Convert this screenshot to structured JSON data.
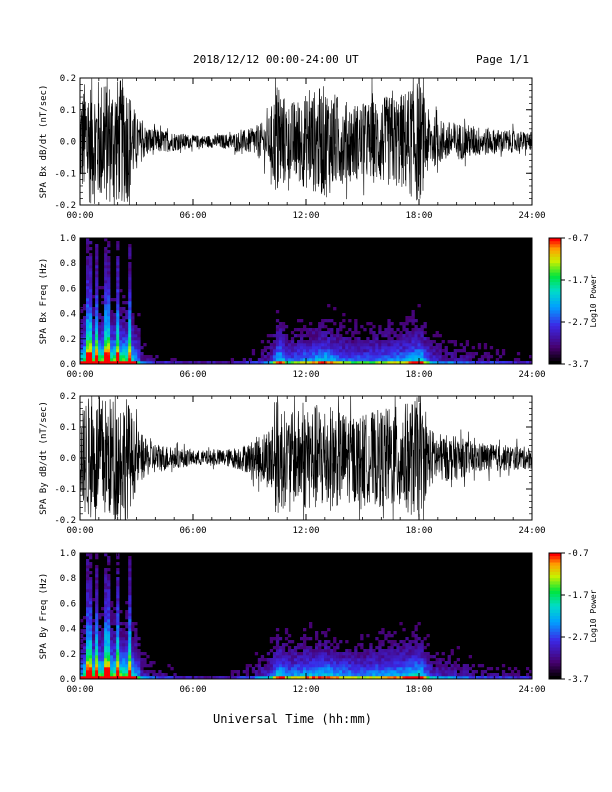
{
  "header": {
    "title": "2018/12/12   00:00-24:00 UT",
    "page_label": "Page 1/1"
  },
  "xaxis": {
    "label": "Universal Time (hh:mm)",
    "ticks": [
      "00:00",
      "06:00",
      "12:00",
      "18:00",
      "24:00"
    ]
  },
  "chart_data": [
    {
      "type": "line",
      "ylabel": "SPA Bx dB/dt (nT/sec)",
      "xlim": [
        0,
        24
      ],
      "ylim": [
        -0.2,
        0.2
      ],
      "yticks": [
        "0.2",
        "0.1",
        "0.0",
        "-0.1",
        "-0.2"
      ],
      "series": [
        {
          "values_envelope_hours": [
            0,
            0.3,
            1.0,
            1.5,
            2.0,
            2.5,
            3.0,
            3.5,
            4.0,
            5.0,
            6.0,
            7.0,
            8.0,
            9.0,
            10.0,
            10.5,
            11.0,
            12.0,
            13.0,
            14.0,
            15.0,
            16.0,
            17.0,
            18.0,
            18.5,
            19.0,
            20.0,
            21.0,
            22.0,
            23.0,
            24.0
          ],
          "amplitude_nT_per_sec": [
            0.15,
            0.2,
            0.2,
            0.2,
            0.2,
            0.2,
            0.08,
            0.05,
            0.04,
            0.03,
            0.02,
            0.02,
            0.025,
            0.04,
            0.07,
            0.2,
            0.12,
            0.15,
            0.18,
            0.13,
            0.12,
            0.14,
            0.15,
            0.2,
            0.1,
            0.07,
            0.06,
            0.05,
            0.04,
            0.035,
            0.03
          ]
        }
      ]
    },
    {
      "type": "heatmap",
      "ylabel": "SPA Bx Freq (Hz)",
      "colorbar_label": "Log10 Power",
      "colorbar_ticks": [
        "-0.7",
        "-1.7",
        "-2.7",
        "-3.7"
      ],
      "ylim": [
        0,
        1.0
      ],
      "yticks": [
        "1.0",
        "0.8",
        "0.6",
        "0.4",
        "0.2",
        "0.0"
      ]
    },
    {
      "type": "line",
      "ylabel": "SPA By dB/dt (nT/sec)",
      "xlim": [
        0,
        24
      ],
      "ylim": [
        -0.2,
        0.2
      ],
      "yticks": [
        "0.2",
        "0.1",
        "0.0",
        "-0.1",
        "-0.2"
      ],
      "series": [
        {
          "values_envelope_hours": [
            0,
            0.3,
            1.0,
            1.5,
            2.0,
            2.5,
            3.0,
            3.5,
            4.0,
            5.0,
            6.0,
            7.0,
            8.0,
            9.0,
            10.0,
            10.5,
            11.0,
            12.0,
            13.0,
            14.0,
            15.0,
            16.0,
            17.0,
            18.0,
            18.5,
            19.0,
            20.0,
            21.0,
            22.0,
            23.0,
            24.0
          ],
          "amplitude_nT_per_sec": [
            0.12,
            0.2,
            0.2,
            0.2,
            0.2,
            0.2,
            0.1,
            0.06,
            0.05,
            0.035,
            0.025,
            0.025,
            0.03,
            0.05,
            0.1,
            0.2,
            0.14,
            0.17,
            0.18,
            0.15,
            0.14,
            0.16,
            0.17,
            0.2,
            0.1,
            0.08,
            0.07,
            0.05,
            0.045,
            0.04,
            0.035
          ]
        }
      ]
    },
    {
      "type": "heatmap",
      "ylabel": "SPA By Freq (Hz)",
      "colorbar_label": "Log10 Power",
      "colorbar_ticks": [
        "-0.7",
        "-1.7",
        "-2.7",
        "-3.7"
      ],
      "ylim": [
        0,
        1.0
      ],
      "yticks": [
        "1.0",
        "0.8",
        "0.6",
        "0.4",
        "0.2",
        "0.0"
      ]
    }
  ]
}
